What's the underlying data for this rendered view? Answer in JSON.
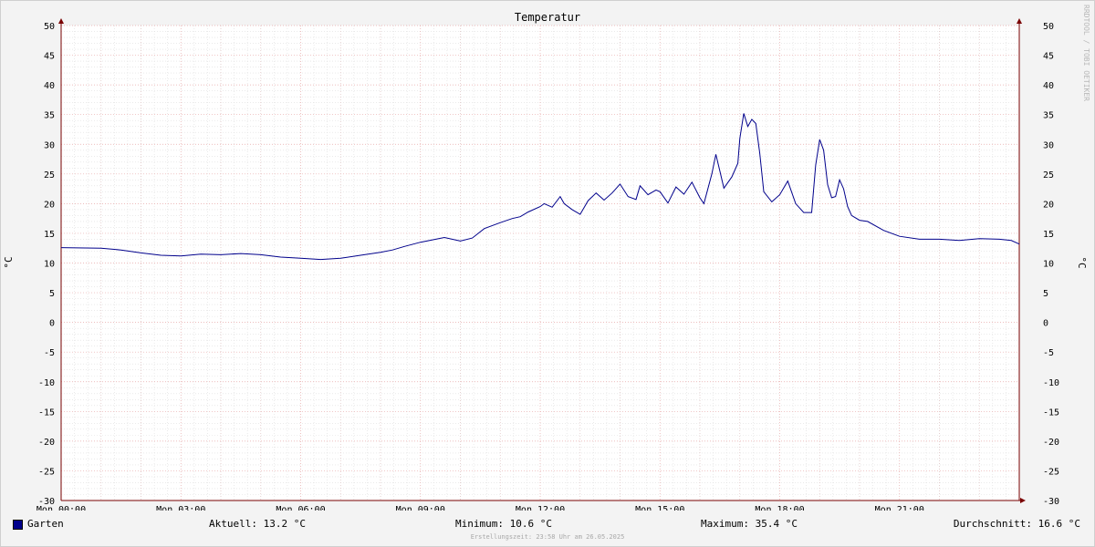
{
  "chart_data": {
    "type": "line",
    "title": "Temperatur",
    "ylabel": "°C",
    "ylim": [
      -30,
      50
    ],
    "yticks": [
      "50",
      "45",
      "40",
      "35",
      "30",
      "25",
      "20",
      "15",
      "10",
      "5",
      "0",
      "-5",
      "-10",
      "-15",
      "-20",
      "-25",
      "-30"
    ],
    "xlim_hours": [
      0,
      24
    ],
    "xticks": [
      "Mon 00:00",
      "Mon 03:00",
      "Mon 06:00",
      "Mon 09:00",
      "Mon 12:00",
      "Mon 15:00",
      "Mon 18:00",
      "Mon 21:00"
    ],
    "grid": true,
    "series": [
      {
        "name": "Garten",
        "color": "#00008b",
        "x_hours": [
          0.0,
          1.0,
          1.5,
          2.0,
          2.5,
          3.0,
          3.5,
          4.0,
          4.5,
          5.0,
          5.5,
          6.0,
          6.5,
          7.0,
          7.5,
          8.0,
          8.3,
          8.6,
          9.0,
          9.3,
          9.6,
          10.0,
          10.3,
          10.6,
          11.0,
          11.3,
          11.5,
          11.7,
          12.0,
          12.1,
          12.3,
          12.5,
          12.6,
          12.8,
          13.0,
          13.2,
          13.4,
          13.6,
          13.8,
          14.0,
          14.2,
          14.4,
          14.5,
          14.7,
          14.9,
          15.0,
          15.2,
          15.4,
          15.6,
          15.8,
          16.0,
          16.1,
          16.3,
          16.4,
          16.5,
          16.6,
          16.8,
          16.95,
          17.0,
          17.1,
          17.2,
          17.3,
          17.4,
          17.5,
          17.6,
          17.8,
          18.0,
          18.2,
          18.4,
          18.6,
          18.8,
          18.9,
          19.0,
          19.1,
          19.2,
          19.3,
          19.4,
          19.5,
          19.6,
          19.7,
          19.8,
          20.0,
          20.2,
          20.6,
          21.0,
          21.5,
          22.0,
          22.5,
          23.0,
          23.5,
          23.8,
          24.0
        ],
        "y": [
          12.6,
          12.5,
          12.2,
          11.7,
          11.3,
          11.2,
          11.5,
          11.4,
          11.6,
          11.4,
          11.0,
          10.8,
          10.6,
          10.8,
          11.3,
          11.8,
          12.2,
          12.8,
          13.5,
          13.9,
          14.3,
          13.7,
          14.2,
          15.8,
          16.8,
          17.5,
          17.8,
          18.6,
          19.5,
          20.0,
          19.4,
          21.2,
          20.0,
          19.0,
          18.2,
          20.5,
          21.8,
          20.6,
          21.8,
          23.3,
          21.2,
          20.7,
          23.0,
          21.5,
          22.3,
          22.0,
          20.1,
          22.8,
          21.6,
          23.6,
          21.0,
          20.0,
          25.0,
          28.3,
          25.5,
          22.6,
          24.5,
          26.8,
          31.0,
          35.2,
          33.0,
          34.2,
          33.5,
          28.5,
          22.0,
          20.3,
          21.5,
          23.8,
          20.0,
          18.5,
          18.5,
          26.5,
          30.8,
          29.0,
          23.2,
          21.0,
          21.2,
          24.0,
          22.5,
          19.5,
          18.0,
          17.2,
          17.0,
          15.5,
          14.5,
          14.0,
          14.0,
          13.8,
          14.1,
          14.0,
          13.8,
          13.2
        ]
      }
    ]
  },
  "legend": {
    "series_name": "Garten",
    "current": "Aktuell: 13.2 °C",
    "minimum": "Minimum: 10.6 °C",
    "maximum": "Maximum: 35.4 °C",
    "average": "Durchschnitt: 16.6 °C"
  },
  "footer": {
    "created": "Erstellungszeit: 23:58 Uhr am 26.05.2025"
  },
  "watermark": "RRDTOOL / TOBI OETIKER"
}
